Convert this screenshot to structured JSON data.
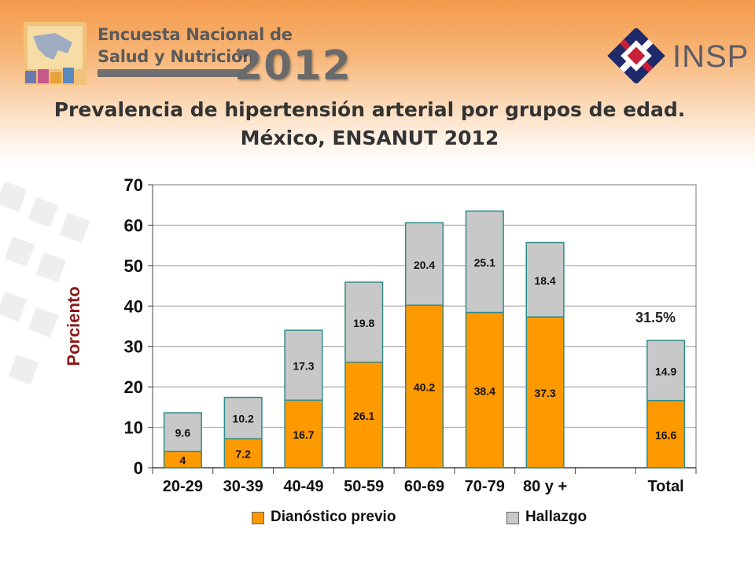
{
  "header": {
    "survey_line1": "Encuesta Nacional de",
    "survey_line2": "Salud y Nutrición",
    "survey_year": "2012",
    "institution": "INSP"
  },
  "title_line1": "Prevalencia de hipertensión arterial por grupos de edad.",
  "title_line2": "México, ENSANUT 2012",
  "colors": {
    "diagnostico": "#ff9900",
    "hallazgo": "#c8c8c8",
    "bar_border": "#2e8b8b",
    "ylabel": "#8b1a1a"
  },
  "chart_data": {
    "type": "bar",
    "stacked": true,
    "ylabel": "Porciento",
    "ylim": [
      0,
      70
    ],
    "yticks": [
      0,
      10,
      20,
      30,
      40,
      50,
      60,
      70
    ],
    "grid": true,
    "legend_position": "bottom",
    "categories": [
      "20-29",
      "30-39",
      "40-49",
      "50-59",
      "60-69",
      "70-79",
      "80 y +",
      "",
      "Total"
    ],
    "series": [
      {
        "name": "Dianóstico previo",
        "values": [
          4,
          7.2,
          16.7,
          26.1,
          40.2,
          38.4,
          37.3,
          null,
          16.6
        ]
      },
      {
        "name": "Hallazgo",
        "values": [
          9.6,
          10.2,
          17.3,
          19.8,
          20.4,
          25.1,
          18.4,
          null,
          14.9
        ]
      }
    ],
    "annotations": [
      {
        "category": "Total",
        "text": "31.5%"
      }
    ]
  }
}
